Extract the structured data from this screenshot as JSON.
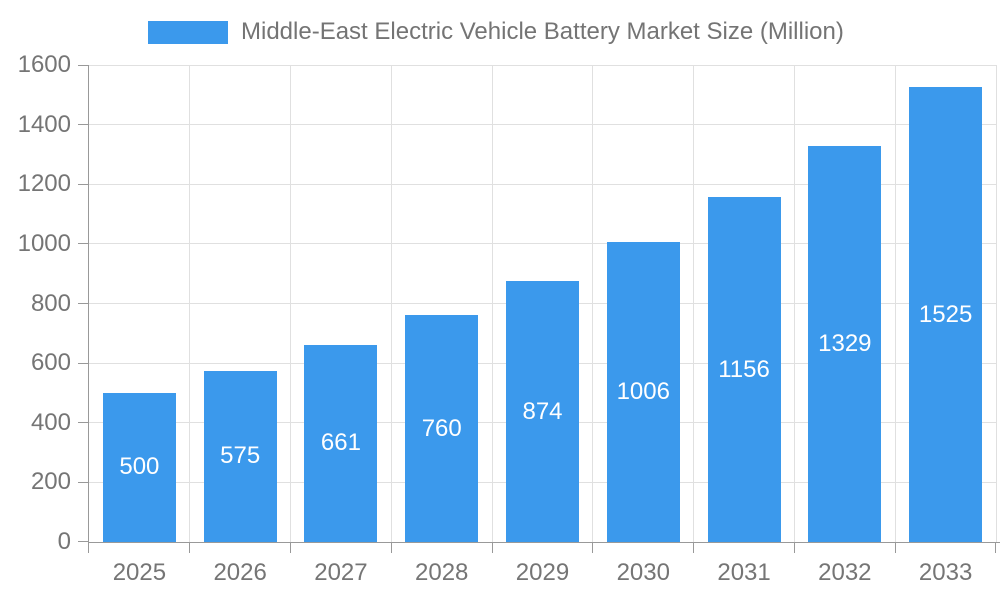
{
  "chart_data": {
    "type": "bar",
    "title": "Middle-East Electric Vehicle Battery Market Size (Million)",
    "categories": [
      "2025",
      "2026",
      "2027",
      "2028",
      "2029",
      "2030",
      "2031",
      "2032",
      "2033"
    ],
    "values": [
      500,
      575,
      661,
      760,
      874,
      1006,
      1156,
      1329,
      1525
    ],
    "xlabel": "",
    "ylabel": "",
    "ylim": [
      0,
      1600
    ],
    "ytick_step": 200,
    "yticks": [
      0,
      200,
      400,
      600,
      800,
      1000,
      1200,
      1400,
      1600
    ],
    "grid": true,
    "legend_position": "top",
    "legend_entries": [
      "Middle-East Electric Vehicle Battery Market Size (Million)"
    ],
    "bar_labels_inside": true,
    "colors": {
      "bar": "#3b99ec",
      "bar_value_text": "#ffffff",
      "axis_line": "#999999",
      "tick": "#999999",
      "gridline": "#e0e0e0",
      "axis_text": "#757575",
      "legend_text": "#747474",
      "background": "#ffffff"
    }
  }
}
